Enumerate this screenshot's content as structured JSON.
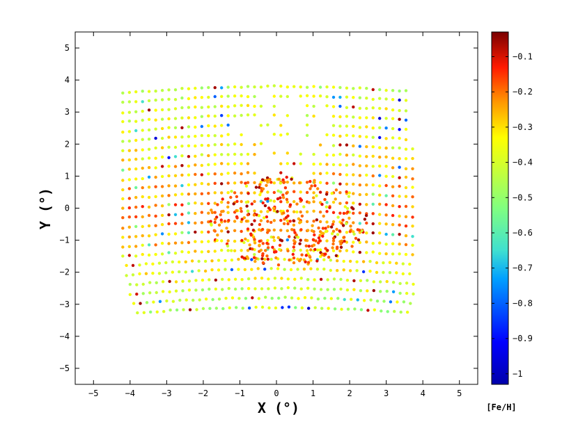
{
  "chart_data": {
    "type": "scatter",
    "title": "",
    "xlabel": "X (°)",
    "ylabel": "Y (°)",
    "xlim": [
      -5.5,
      5.5
    ],
    "ylim": [
      -5.5,
      5.5
    ],
    "xticks": [
      "−5",
      "−4",
      "−3",
      "−2",
      "−1",
      "0",
      "1",
      "2",
      "3",
      "4",
      "5"
    ],
    "yticks": [
      "−5",
      "−4",
      "−3",
      "−2",
      "−1",
      "0",
      "1",
      "2",
      "3",
      "4",
      "5"
    ],
    "grid": false,
    "colorbar": {
      "label": "[Fe/H]",
      "range": [
        -1.03,
        -0.03
      ],
      "ticks": [
        "−0.1",
        "−0.2",
        "−0.3",
        "−0.4",
        "−0.5",
        "−0.6",
        "−0.7",
        "−0.8",
        "−0.9",
        "−1"
      ],
      "colormap": "jet"
    },
    "fields": [
      {
        "name": "row",
        "y": 3.8,
        "x_from": -4.2,
        "x_to": 3.6,
        "feh_mean": -0.42
      },
      {
        "name": "row",
        "y": 3.5,
        "x_from": -4.2,
        "x_to": 3.7,
        "feh_mean": -0.4
      },
      {
        "name": "row",
        "y": 3.2,
        "x_from": -4.2,
        "x_to": 3.6,
        "feh_mean": -0.37
      },
      {
        "name": "row",
        "y": 2.9,
        "x_from": -4.2,
        "x_to": 3.6,
        "feh_mean": -0.38
      },
      {
        "name": "row",
        "y": 2.6,
        "x_from": -4.2,
        "x_to": 3.7,
        "feh_mean": -0.37
      },
      {
        "name": "row",
        "y": 2.3,
        "x_from": -4.2,
        "x_to": 3.7,
        "feh_mean": -0.36
      },
      {
        "name": "row",
        "y": 2.0,
        "x_from": -4.2,
        "x_to": 3.8,
        "feh_mean": -0.34
      },
      {
        "name": "row",
        "y": 1.7,
        "x_from": -4.2,
        "x_to": 3.8,
        "feh_mean": -0.33
      },
      {
        "name": "row",
        "y": 1.4,
        "x_from": -4.2,
        "x_to": 3.8,
        "feh_mean": -0.3
      },
      {
        "name": "row",
        "y": 1.1,
        "x_from": -4.2,
        "x_to": 3.8,
        "feh_mean": -0.28
      },
      {
        "name": "row",
        "y": 0.8,
        "x_from": -4.2,
        "x_to": 3.8,
        "feh_mean": -0.25
      },
      {
        "name": "row",
        "y": 0.5,
        "x_from": -4.2,
        "x_to": 3.8,
        "feh_mean": -0.23
      },
      {
        "name": "row",
        "y": 0.2,
        "x_from": -4.2,
        "x_to": 3.8,
        "feh_mean": -0.22
      },
      {
        "name": "row",
        "y": -0.1,
        "x_from": -4.2,
        "x_to": 3.8,
        "feh_mean": -0.22
      },
      {
        "name": "row",
        "y": -0.4,
        "x_from": -4.2,
        "x_to": 3.8,
        "feh_mean": -0.23
      },
      {
        "name": "row",
        "y": -0.7,
        "x_from": -4.2,
        "x_to": 3.8,
        "feh_mean": -0.25
      },
      {
        "name": "row",
        "y": -1.0,
        "x_from": -4.2,
        "x_to": 3.8,
        "feh_mean": -0.28
      },
      {
        "name": "row",
        "y": -1.3,
        "x_from": -4.2,
        "x_to": 3.8,
        "feh_mean": -0.31
      },
      {
        "name": "row",
        "y": -1.6,
        "x_from": -4.1,
        "x_to": 3.8,
        "feh_mean": -0.34
      },
      {
        "name": "row",
        "y": -1.9,
        "x_from": -4.1,
        "x_to": 3.8,
        "feh_mean": -0.36
      },
      {
        "name": "row",
        "y": -2.2,
        "x_from": -4.0,
        "x_to": 3.8,
        "feh_mean": -0.38
      },
      {
        "name": "row",
        "y": -2.5,
        "x_from": -4.0,
        "x_to": 3.8,
        "feh_mean": -0.4
      },
      {
        "name": "row",
        "y": -2.8,
        "x_from": -3.9,
        "x_to": 3.8,
        "feh_mean": -0.42
      },
      {
        "name": "row",
        "y": -3.1,
        "x_from": -3.8,
        "x_to": 3.7,
        "feh_mean": -0.44
      }
    ],
    "central_cluster": {
      "x_range": [
        -1.8,
        2.6
      ],
      "y_range": [
        -1.8,
        1.0
      ],
      "feh_mean": -0.18
    },
    "sparse_core": {
      "center": [
        0.2,
        2.3
      ],
      "radius": 1.4
    }
  }
}
